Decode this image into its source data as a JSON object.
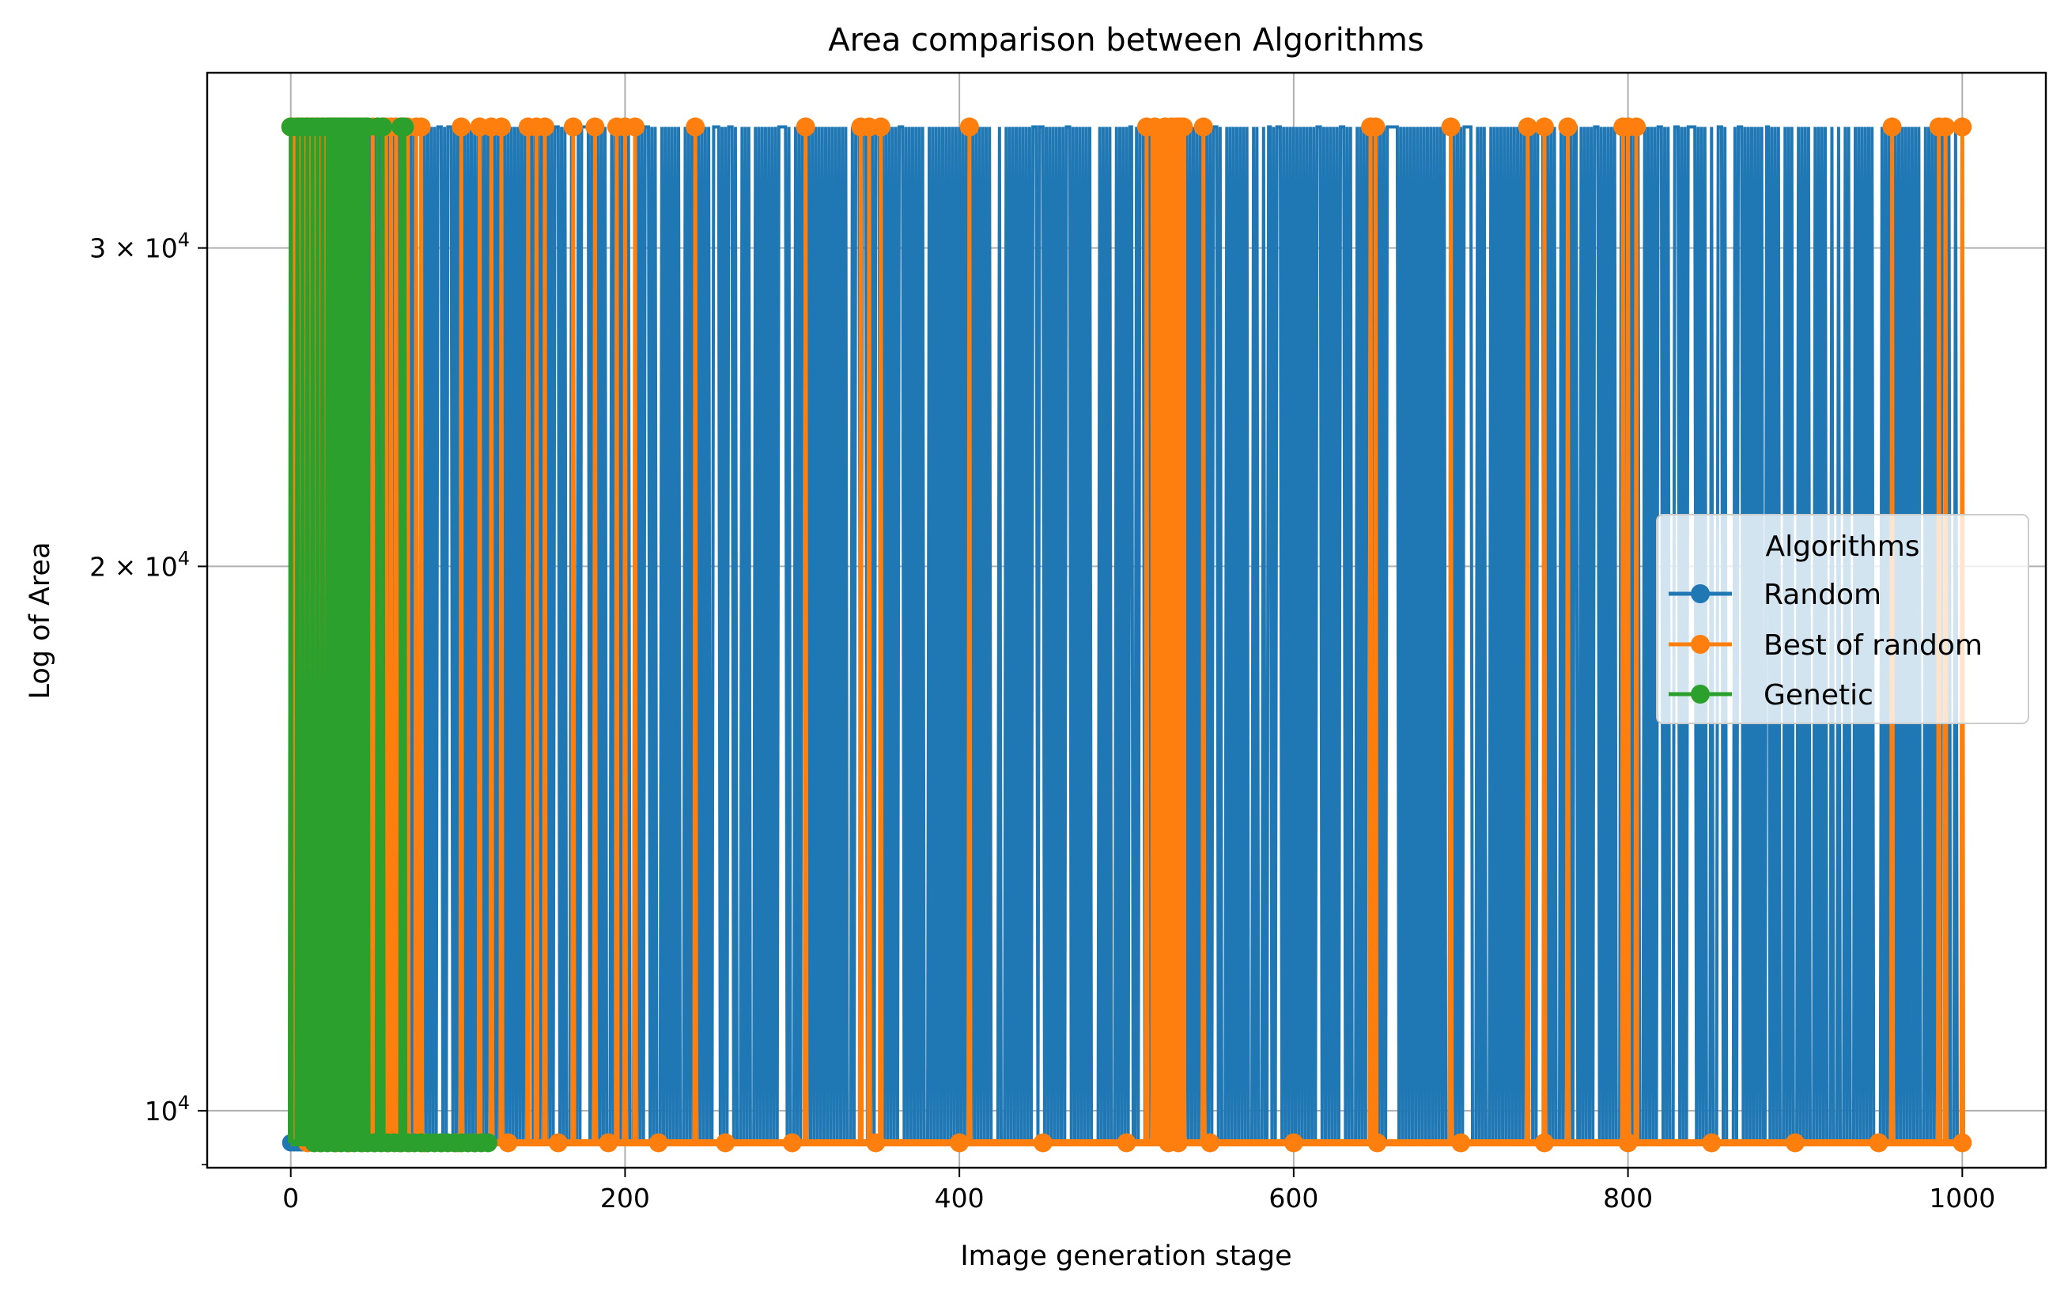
{
  "chart_data": {
    "type": "line",
    "title": "Area comparison between Algorithms",
    "xlabel": "Image generation stage",
    "ylabel": "Log of Area",
    "xlim": [
      -50,
      1050
    ],
    "ylim": [
      9300,
      37500
    ],
    "yscale": "log",
    "grid": true,
    "x_ticks": [
      0,
      200,
      400,
      600,
      800,
      1000
    ],
    "x_tick_labels": [
      "0",
      "200",
      "400",
      "600",
      "800",
      "1000"
    ],
    "y_ticks": [
      10000,
      20000,
      30000
    ],
    "y_tick_labels": [
      {
        "base": "10",
        "exp": "4",
        "prefix": ""
      },
      {
        "base": "10",
        "exp": "4",
        "prefix": "2 × "
      },
      {
        "base": "10",
        "exp": "4",
        "prefix": "3 × "
      }
    ],
    "high_value": 35000,
    "low_value": 9600,
    "legend": {
      "title": "Algorithms",
      "position": "center-right",
      "entries": [
        "Random",
        "Best of random",
        "Genetic"
      ]
    },
    "series": [
      {
        "name": "Random",
        "color": "#1f77b4",
        "x_range": [
          0,
          1000
        ],
        "description": "alternates between high and low values nearly every stage"
      },
      {
        "name": "Best of random",
        "color": "#ff7f0e",
        "x_range": [
          0,
          1000
        ],
        "high_x": [
          0,
          2,
          5,
          7,
          9,
          10,
          12,
          15,
          17,
          19,
          20,
          22,
          23,
          25,
          28,
          30,
          33,
          38,
          41,
          45,
          49,
          52,
          55,
          57,
          60,
          63,
          66,
          70,
          75,
          78,
          102,
          113,
          120,
          126,
          142,
          147,
          152,
          169,
          182,
          195,
          200,
          206,
          242,
          308,
          341,
          346,
          353,
          406,
          512,
          517,
          523,
          527,
          530,
          532,
          534,
          546,
          646,
          649,
          694,
          740,
          750,
          764,
          797,
          800,
          805,
          958,
          986,
          990,
          1000
        ],
        "low_x": [
          10,
          18,
          27,
          35,
          43,
          50,
          58,
          65,
          71,
          80,
          90,
          100,
          110,
          130,
          160,
          190,
          220,
          260,
          300,
          350,
          400,
          450,
          500,
          525,
          531,
          550,
          600,
          650,
          700,
          750,
          800,
          850,
          900,
          950,
          1000
        ]
      },
      {
        "name": "Genetic",
        "color": "#2ca02c",
        "x_range": [
          0,
          118
        ],
        "high_x": [
          0,
          4,
          7,
          10,
          13,
          16,
          19,
          22,
          24,
          26,
          28,
          30,
          32,
          34,
          36,
          38,
          40,
          42,
          44,
          46,
          52,
          55,
          66,
          68
        ],
        "low_x": [
          14,
          18,
          22,
          26,
          30,
          34,
          38,
          42,
          46,
          50,
          54,
          58,
          62,
          66,
          70,
          74,
          78,
          82,
          86,
          90,
          94,
          98,
          102,
          106,
          110,
          114,
          118
        ]
      }
    ]
  }
}
